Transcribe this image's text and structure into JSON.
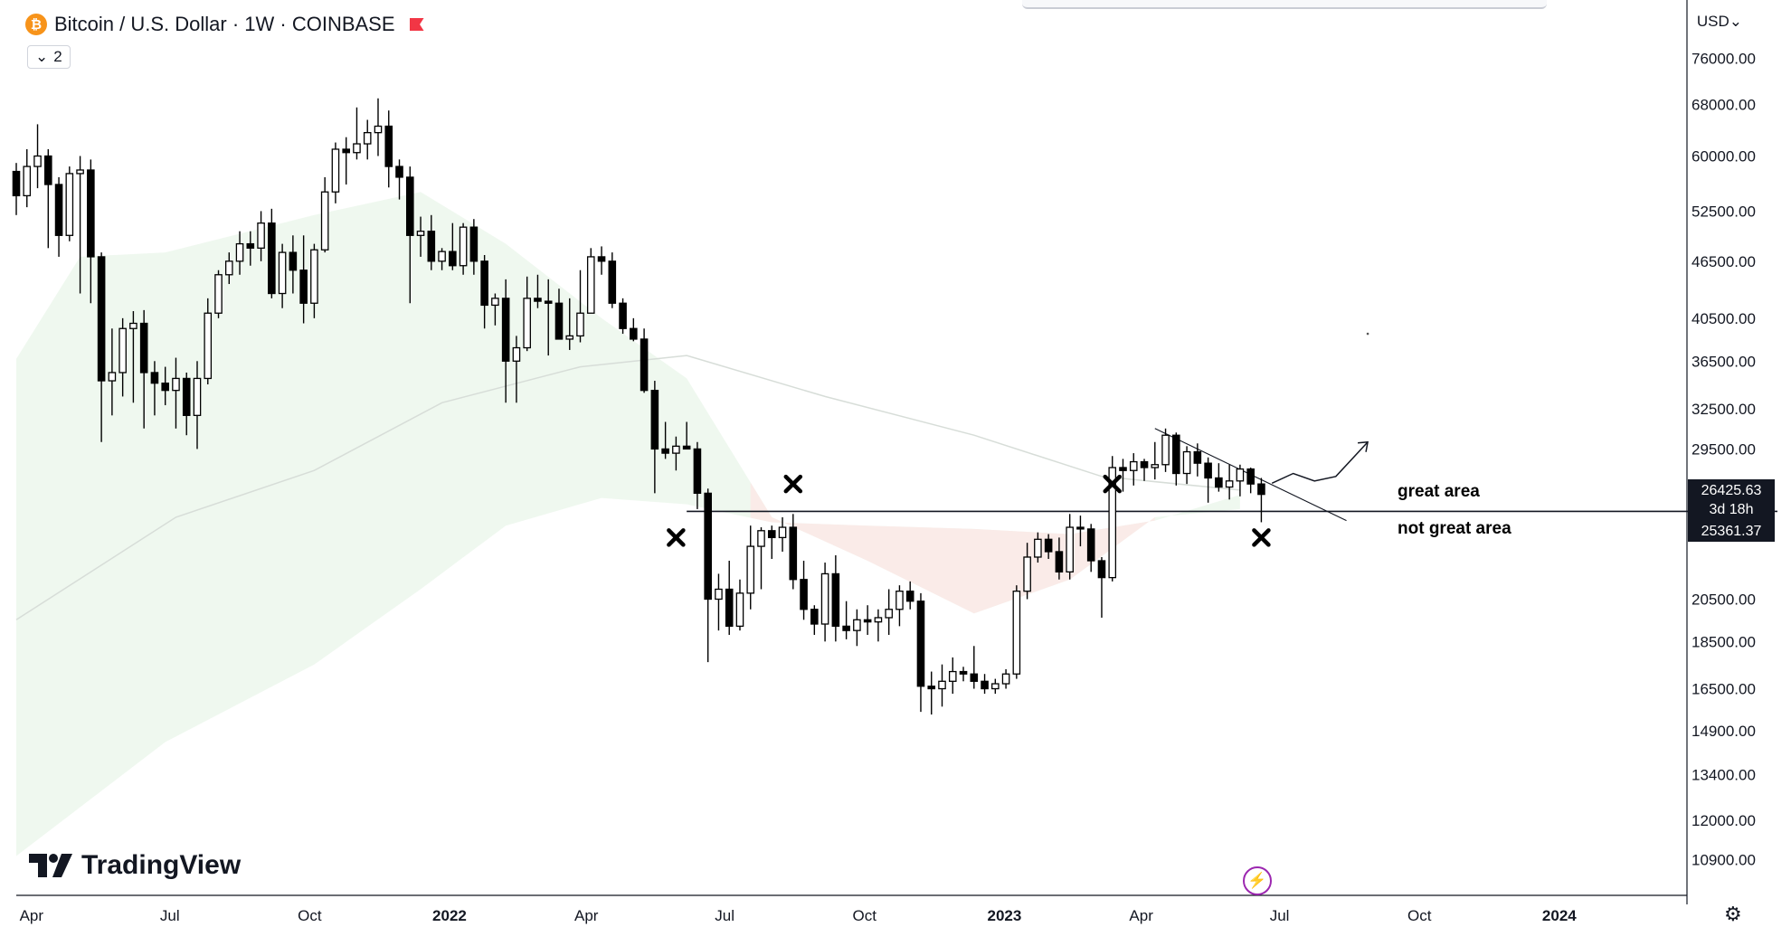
{
  "header": {
    "coin_icon_glyph": "₿",
    "title": "Bitcoin / U.S. Dollar · 1W · COINBASE",
    "indicator_count": "2",
    "chevron": "⌄"
  },
  "currency_label": "USD⌄",
  "brand": {
    "name": "TradingView"
  },
  "price_tags": {
    "last_price": "26425.63",
    "countdown": "3d 18h",
    "level_price": "25361.37"
  },
  "annotations": {
    "great_area": "great area",
    "not_great_area": "not great area"
  },
  "colors": {
    "up_fill": "#ffffff",
    "down_fill": "#000000",
    "candle_stroke": "#000000",
    "band_green": "#e9f5ea",
    "band_red": "#fbe9e7",
    "ma_line": "#d7ddd8",
    "accent_bolt": "#9c27b0",
    "btc_orange": "#f7931a",
    "flag_red": "#f23645"
  },
  "chart_data": {
    "type": "candlestick",
    "title": "Bitcoin / U.S. Dollar · 1W · COINBASE",
    "interval": "1W",
    "y_scale": "log",
    "ylim": [
      10000,
      82000
    ],
    "xlim": [
      "2021-03-22",
      "2024-03-25"
    ],
    "y_ticks": [
      "76000.00",
      "68000.00",
      "60000.00",
      "52500.00",
      "46500.00",
      "40500.00",
      "36500.00",
      "32500.00",
      "29500.00",
      "20500.00",
      "18500.00",
      "16500.00",
      "14900.00",
      "13400.00",
      "12000.00",
      "10900.00"
    ],
    "x_ticks": [
      {
        "label": "Apr",
        "date": "2021-04-01",
        "bold": false
      },
      {
        "label": "Jul",
        "date": "2021-07-01",
        "bold": false
      },
      {
        "label": "Oct",
        "date": "2021-10-01",
        "bold": false
      },
      {
        "label": "2022",
        "date": "2022-01-01",
        "bold": true
      },
      {
        "label": "Apr",
        "date": "2022-04-01",
        "bold": false
      },
      {
        "label": "Jul",
        "date": "2022-07-01",
        "bold": false
      },
      {
        "label": "Oct",
        "date": "2022-10-01",
        "bold": false
      },
      {
        "label": "2023",
        "date": "2023-01-01",
        "bold": true
      },
      {
        "label": "Apr",
        "date": "2023-04-01",
        "bold": false
      },
      {
        "label": "Jul",
        "date": "2023-07-01",
        "bold": false
      },
      {
        "label": "Oct",
        "date": "2023-10-01",
        "bold": false
      },
      {
        "label": "2024",
        "date": "2024-01-01",
        "bold": true
      }
    ],
    "first_candle_date": "2021-03-22",
    "candles": [
      [
        57800,
        59000,
        52000,
        54500
      ],
      [
        54500,
        61000,
        53000,
        58500
      ],
      [
        58500,
        64800,
        55500,
        60000
      ],
      [
        60000,
        61000,
        48000,
        56000
      ],
      [
        56000,
        57000,
        47000,
        49500
      ],
      [
        49500,
        58500,
        48800,
        57500
      ],
      [
        57500,
        60000,
        43000,
        58000
      ],
      [
        58000,
        59500,
        42000,
        47000
      ],
      [
        47000,
        47500,
        30000,
        34800
      ],
      [
        34800,
        39500,
        32000,
        35500
      ],
      [
        35500,
        40500,
        33500,
        39500
      ],
      [
        39500,
        41200,
        33000,
        40000
      ],
      [
        40000,
        41300,
        31000,
        35500
      ],
      [
        35500,
        36500,
        32000,
        34600
      ],
      [
        34600,
        36000,
        32800,
        34000
      ],
      [
        34000,
        36800,
        31000,
        35000
      ],
      [
        35000,
        35500,
        30500,
        32000
      ],
      [
        32000,
        36500,
        29500,
        35000
      ],
      [
        35000,
        42500,
        34500,
        41000
      ],
      [
        41000,
        45500,
        40500,
        45000
      ],
      [
        45000,
        47500,
        44000,
        46500
      ],
      [
        46500,
        50000,
        45000,
        48500
      ],
      [
        48500,
        50000,
        46000,
        48000
      ],
      [
        48000,
        52500,
        46500,
        51000
      ],
      [
        51000,
        52800,
        42500,
        43000
      ],
      [
        43000,
        48500,
        41500,
        47500
      ],
      [
        47500,
        49500,
        43000,
        45500
      ],
      [
        45500,
        49500,
        40000,
        42000
      ],
      [
        42000,
        48500,
        40500,
        47800
      ],
      [
        47800,
        57000,
        47500,
        55000
      ],
      [
        55000,
        62000,
        53500,
        61000
      ],
      [
        61000,
        62800,
        56000,
        60500
      ],
      [
        60500,
        67500,
        59500,
        61800
      ],
      [
        61800,
        65500,
        59500,
        63500
      ],
      [
        63500,
        69000,
        60000,
        64500
      ],
      [
        64500,
        67000,
        55600,
        58500
      ],
      [
        58500,
        59500,
        54000,
        57000
      ],
      [
        57000,
        58500,
        42000,
        49500
      ],
      [
        49500,
        51800,
        47000,
        50000
      ],
      [
        50000,
        52000,
        45500,
        46500
      ],
      [
        46500,
        48000,
        45500,
        47600
      ],
      [
        47600,
        51000,
        45500,
        46000
      ],
      [
        46000,
        51000,
        45000,
        50500
      ],
      [
        50500,
        51500,
        45000,
        46500
      ],
      [
        46500,
        47200,
        39500,
        41800
      ],
      [
        41800,
        43000,
        39800,
        42500
      ],
      [
        42500,
        44500,
        33000,
        36500
      ],
      [
        36500,
        38800,
        33000,
        37700
      ],
      [
        37700,
        44800,
        37400,
        42500
      ],
      [
        42500,
        45000,
        41500,
        42200
      ],
      [
        42200,
        44500,
        37000,
        42000
      ],
      [
        42000,
        43500,
        38500,
        38500
      ],
      [
        38500,
        42500,
        37500,
        38800
      ],
      [
        38800,
        45500,
        38200,
        41000
      ],
      [
        41000,
        48000,
        41000,
        47000
      ],
      [
        47000,
        48200,
        45000,
        46500
      ],
      [
        46500,
        47500,
        41500,
        42000
      ],
      [
        42000,
        42500,
        39000,
        39500
      ],
      [
        39500,
        40500,
        38300,
        38500
      ],
      [
        38500,
        39500,
        33800,
        34000
      ],
      [
        34000,
        34800,
        26500,
        29500
      ],
      [
        29500,
        31500,
        28800,
        29200
      ],
      [
        29200,
        30400,
        28000,
        29700
      ],
      [
        29700,
        31500,
        29500,
        29500
      ],
      [
        29500,
        30000,
        25500,
        26500
      ],
      [
        26500,
        26800,
        17600,
        20500
      ],
      [
        20500,
        21800,
        19000,
        21000
      ],
      [
        21000,
        22500,
        18800,
        19200
      ],
      [
        19200,
        21500,
        19000,
        20800
      ],
      [
        20800,
        24500,
        20000,
        23300
      ],
      [
        23300,
        24400,
        21000,
        24200
      ],
      [
        24200,
        24500,
        22600,
        23800
      ],
      [
        23800,
        25000,
        23000,
        24400
      ],
      [
        24400,
        25200,
        21000,
        21500
      ],
      [
        21500,
        22500,
        19500,
        20000
      ],
      [
        20000,
        20200,
        18800,
        19300
      ],
      [
        19300,
        22400,
        18500,
        21800
      ],
      [
        21800,
        22800,
        18500,
        19200
      ],
      [
        19200,
        20400,
        18600,
        19000
      ],
      [
        19000,
        20000,
        18300,
        19500
      ],
      [
        19500,
        20200,
        18800,
        19400
      ],
      [
        19400,
        20000,
        18500,
        19600
      ],
      [
        19600,
        21000,
        18800,
        20000
      ],
      [
        20000,
        21200,
        19200,
        20900
      ],
      [
        20900,
        21400,
        20000,
        20400
      ],
      [
        20400,
        20800,
        15600,
        16600
      ],
      [
        16600,
        17200,
        15500,
        16500
      ],
      [
        16500,
        17500,
        15800,
        16800
      ],
      [
        16800,
        17800,
        16300,
        17200
      ],
      [
        17200,
        17400,
        16800,
        17100
      ],
      [
        17100,
        18300,
        16500,
        16800
      ],
      [
        16800,
        17100,
        16300,
        16500
      ],
      [
        16500,
        16900,
        16300,
        16700
      ],
      [
        16700,
        17300,
        16500,
        17100
      ],
      [
        17100,
        21200,
        16900,
        20900
      ],
      [
        20900,
        23500,
        20500,
        22700
      ],
      [
        22700,
        24100,
        22400,
        23700
      ],
      [
        23700,
        24000,
        22600,
        23000
      ],
      [
        23000,
        23800,
        21500,
        21900
      ],
      [
        21900,
        25200,
        21500,
        24400
      ],
      [
        24400,
        25100,
        23300,
        24300
      ],
      [
        24300,
        24600,
        21900,
        22500
      ],
      [
        22500,
        22700,
        19600,
        21600
      ],
      [
        21600,
        29000,
        21400,
        28200
      ],
      [
        28200,
        28800,
        26600,
        28000
      ],
      [
        28000,
        29200,
        27000,
        28600
      ],
      [
        28600,
        28800,
        27300,
        28200
      ],
      [
        28200,
        30000,
        27400,
        28400
      ],
      [
        28400,
        31000,
        27900,
        30500
      ],
      [
        30500,
        30700,
        27000,
        27800
      ],
      [
        27800,
        29700,
        27100,
        29300
      ],
      [
        29300,
        29900,
        27600,
        28500
      ],
      [
        28500,
        28900,
        25900,
        27500
      ],
      [
        27500,
        28500,
        26600,
        26900
      ],
      [
        26900,
        28400,
        26100,
        27300
      ],
      [
        27300,
        28400,
        26300,
        28100
      ],
      [
        28100,
        28200,
        26500,
        27100
      ],
      [
        27100,
        27500,
        24700,
        26425.63
      ]
    ],
    "support_level": 25361.37,
    "support_from": "2022-06-06",
    "trendline": {
      "from_date": "2023-04-10",
      "from": 31000,
      "to_date": "2023-08-14",
      "to": 24800
    },
    "band_upper": [
      [
        "2021-03-22",
        36700
      ],
      [
        "2021-05-03",
        47000
      ],
      [
        "2021-06-28",
        47500
      ],
      [
        "2021-10-04",
        52000
      ],
      [
        "2021-12-13",
        55000
      ],
      [
        "2022-02-07",
        48500
      ],
      [
        "2022-04-11",
        40500
      ],
      [
        "2022-06-06",
        35000
      ],
      [
        "2022-08-01",
        25000
      ],
      [
        "2022-10-03",
        22500
      ],
      [
        "2022-12-12",
        19800
      ],
      [
        "2023-02-13",
        21500
      ],
      [
        "2023-04-10",
        25000
      ],
      [
        "2023-06-05",
        25500
      ]
    ],
    "band_lower": [
      [
        "2021-03-22",
        11000
      ],
      [
        "2021-06-28",
        14500
      ],
      [
        "2021-10-04",
        17500
      ],
      [
        "2021-12-13",
        21000
      ],
      [
        "2022-02-07",
        24500
      ],
      [
        "2022-04-11",
        26200
      ],
      [
        "2022-06-06",
        25800
      ],
      [
        "2022-08-01",
        24700
      ],
      [
        "2022-10-03",
        24500
      ],
      [
        "2022-12-12",
        24300
      ],
      [
        "2023-02-13",
        24000
      ],
      [
        "2023-04-10",
        24800
      ],
      [
        "2023-06-05",
        26400
      ]
    ],
    "band_red_from": "2022-07-18",
    "ma_line": [
      [
        "2021-03-22",
        19500
      ],
      [
        "2021-07-05",
        25000
      ],
      [
        "2021-10-04",
        28000
      ],
      [
        "2021-12-27",
        33000
      ],
      [
        "2022-03-28",
        36000
      ],
      [
        "2022-06-06",
        37000
      ],
      [
        "2022-09-05",
        33500
      ],
      [
        "2022-12-12",
        30500
      ],
      [
        "2023-03-06",
        27600
      ],
      [
        "2023-06-05",
        26700
      ]
    ],
    "x_marks": [
      {
        "date": "2022-05-30",
        "price": 23800
      },
      {
        "date": "2022-08-15",
        "price": 27100
      },
      {
        "date": "2023-03-13",
        "price": 27100
      },
      {
        "date": "2023-06-19",
        "price": 23800
      }
    ],
    "freehand_arrow": [
      [
        "2023-06-26",
        27150
      ],
      [
        "2023-07-10",
        27800
      ],
      [
        "2023-07-24",
        27300
      ],
      [
        "2023-08-07",
        27600
      ],
      [
        "2023-08-28",
        30000
      ]
    ],
    "stray_dot": {
      "date": "2023-08-28",
      "price": 39000
    }
  }
}
